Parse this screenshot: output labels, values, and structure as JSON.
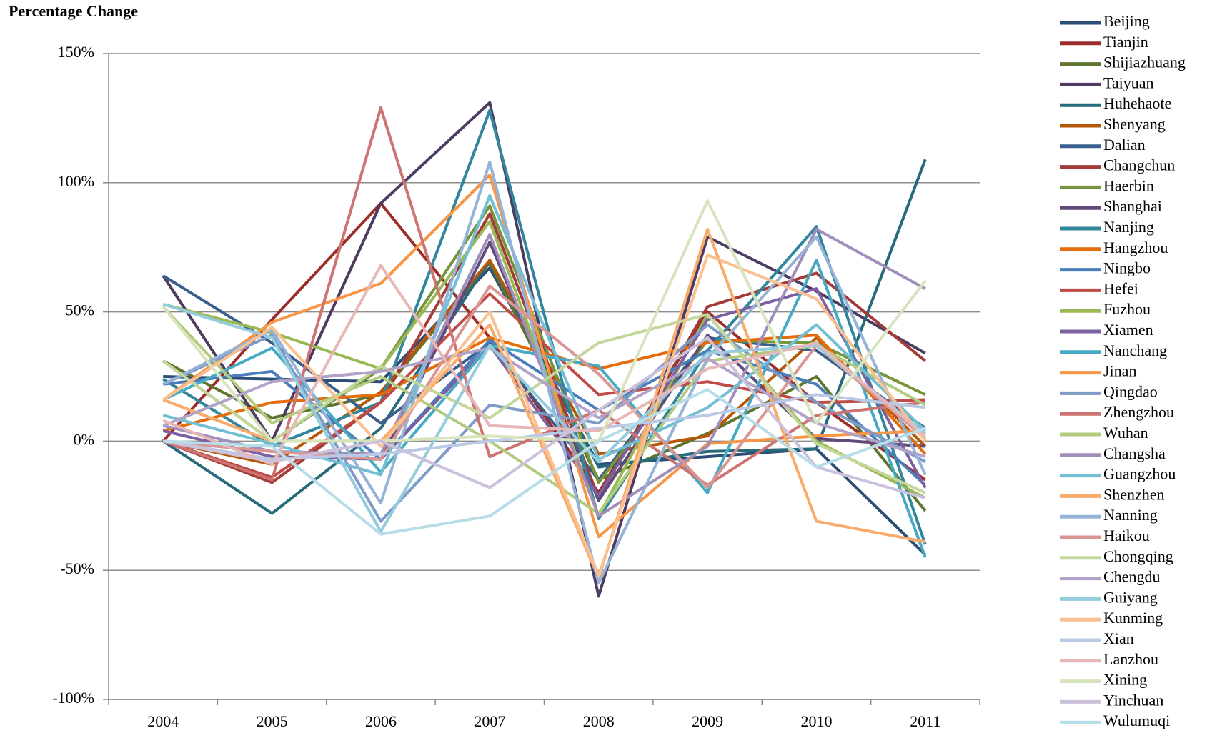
{
  "chart_data": {
    "type": "line",
    "title": "Percentage Change",
    "categories": [
      "2004",
      "2005",
      "2006",
      "2007",
      "2008",
      "2009",
      "2010",
      "2011"
    ],
    "ylim": [
      -100,
      150
    ],
    "yticks": [
      {
        "value": -100,
        "label": "-100%"
      },
      {
        "value": -50,
        "label": "-50%"
      },
      {
        "value": 0,
        "label": "0%"
      },
      {
        "value": 50,
        "label": "50%"
      },
      {
        "value": 100,
        "label": "100%"
      },
      {
        "value": 150,
        "label": "150%"
      }
    ],
    "grid": true,
    "legend": "right",
    "series": [
      {
        "name": "Beijing",
        "color": "#2c4d75",
        "values": [
          25,
          24,
          23,
          67,
          -9,
          -6,
          -3,
          -44
        ]
      },
      {
        "name": "Tianjin",
        "color": "#9b2d2a",
        "values": [
          0,
          47,
          92,
          40,
          -20,
          50,
          15,
          -15
        ]
      },
      {
        "name": "Shijiazhuang",
        "color": "#5f7530",
        "values": [
          31,
          9,
          18,
          69,
          -15,
          3,
          25,
          -27
        ]
      },
      {
        "name": "Taiyuan",
        "color": "#4d3b62",
        "values": [
          64,
          0,
          92,
          131,
          -60,
          79,
          58,
          34
        ]
      },
      {
        "name": "Huhehaote",
        "color": "#276a7c",
        "values": [
          0,
          -28,
          5,
          70,
          -10,
          -4,
          -3,
          109
        ]
      },
      {
        "name": "Shenyang",
        "color": "#b65708",
        "values": [
          0,
          -9,
          19,
          70,
          -5,
          2,
          40,
          -2
        ]
      },
      {
        "name": "Dalian",
        "color": "#3a5f8c",
        "values": [
          64,
          38,
          7,
          38,
          -15,
          40,
          35,
          5
        ]
      },
      {
        "name": "Changchun",
        "color": "#a33c39",
        "values": [
          0,
          -16,
          15,
          88,
          -22,
          52,
          65,
          31
        ]
      },
      {
        "name": "Haerbin",
        "color": "#77933c",
        "values": [
          31,
          0,
          28,
          91,
          -16,
          39,
          38,
          18
        ]
      },
      {
        "name": "Shanghai",
        "color": "#604a7b",
        "values": [
          0,
          -4,
          -7,
          77,
          -23,
          41,
          1,
          -2
        ]
      },
      {
        "name": "Nanjing",
        "color": "#31859c",
        "values": [
          24,
          -2,
          15,
          128,
          -30,
          35,
          83,
          -40
        ]
      },
      {
        "name": "Hangzhou",
        "color": "#e46c0a",
        "values": [
          4,
          15,
          18,
          40,
          28,
          38,
          41,
          -5
        ]
      },
      {
        "name": "Ningbo",
        "color": "#4a7ebb",
        "values": [
          22,
          27,
          -7,
          39,
          12,
          35,
          22,
          -17
        ]
      },
      {
        "name": "Hefei",
        "color": "#be4b48",
        "values": [
          0,
          -14,
          15,
          57,
          18,
          23,
          15,
          16
        ]
      },
      {
        "name": "Fuzhou",
        "color": "#98b954",
        "values": [
          53,
          42,
          28,
          85,
          -29,
          49,
          0,
          -22
        ]
      },
      {
        "name": "Xiamen",
        "color": "#7d60a0",
        "values": [
          4,
          -6,
          -7,
          37,
          -21,
          47,
          59,
          -18
        ]
      },
      {
        "name": "Nanchang",
        "color": "#46aac5",
        "values": [
          16,
          36,
          -12,
          37,
          29,
          -20,
          70,
          -45
        ]
      },
      {
        "name": "Jinan",
        "color": "#f79646",
        "values": [
          16,
          46,
          61,
          103,
          -37,
          -1,
          2,
          4
        ]
      },
      {
        "name": "Qingdao",
        "color": "#7e9bc8",
        "values": [
          22,
          41,
          -31,
          14,
          7,
          45,
          15,
          -8
        ]
      },
      {
        "name": "Zhengzhou",
        "color": "#cd7371",
        "values": [
          0,
          -15,
          129,
          -6,
          12,
          -17,
          10,
          15
        ]
      },
      {
        "name": "Wuhan",
        "color": "#b3cb7f",
        "values": [
          52,
          7,
          25,
          0,
          -28,
          31,
          37,
          14
        ]
      },
      {
        "name": "Changsha",
        "color": "#a18fbb",
        "values": [
          6,
          -4,
          -5,
          80,
          -29,
          -2,
          82,
          59
        ]
      },
      {
        "name": "Guangzhou",
        "color": "#72bfd4",
        "values": [
          10,
          -1,
          -13,
          95,
          -7,
          13,
          45,
          4
        ]
      },
      {
        "name": "Shenzhen",
        "color": "#f9ab6b",
        "values": [
          16,
          0,
          0,
          45,
          -53,
          82,
          -31,
          -39
        ]
      },
      {
        "name": "Nanning",
        "color": "#95b3d7",
        "values": [
          22,
          43,
          -24,
          108,
          -55,
          32,
          79,
          -13
        ]
      },
      {
        "name": "Haikou",
        "color": "#d99694",
        "values": [
          0,
          -4,
          -7,
          60,
          26,
          -18,
          37,
          1
        ]
      },
      {
        "name": "Chongqing",
        "color": "#c3d69b",
        "values": [
          31,
          0,
          29,
          9,
          38,
          49,
          -1,
          -20
        ]
      },
      {
        "name": "Chengdu",
        "color": "#b3a2c7",
        "values": [
          6,
          23,
          27,
          36,
          9,
          32,
          7,
          -6
        ]
      },
      {
        "name": "Guiyang",
        "color": "#93cddd",
        "values": [
          53,
          40,
          -35,
          37,
          -8,
          34,
          37,
          3
        ]
      },
      {
        "name": "Kunming",
        "color": "#fac090",
        "values": [
          16,
          44,
          -2,
          50,
          -52,
          72,
          55,
          0
        ]
      },
      {
        "name": "Xian",
        "color": "#b9c9e6",
        "values": [
          0,
          -7,
          -5,
          0,
          5,
          10,
          18,
          13
        ]
      },
      {
        "name": "Lanzhou",
        "color": "#e6b9b8",
        "values": [
          8,
          -9,
          68,
          6,
          4,
          28,
          38,
          2
        ]
      },
      {
        "name": "Xining",
        "color": "#d7e4bd",
        "values": [
          52,
          0,
          0,
          2,
          0,
          93,
          7,
          62
        ]
      },
      {
        "name": "Yinchuan",
        "color": "#ccc1da",
        "values": [
          0,
          -8,
          0,
          -18,
          12,
          40,
          -10,
          -22
        ]
      },
      {
        "name": "Wulumuqi",
        "color": "#b7dee8",
        "values": [
          0,
          -2,
          -36,
          -29,
          0,
          20,
          -10,
          5
        ]
      }
    ]
  }
}
